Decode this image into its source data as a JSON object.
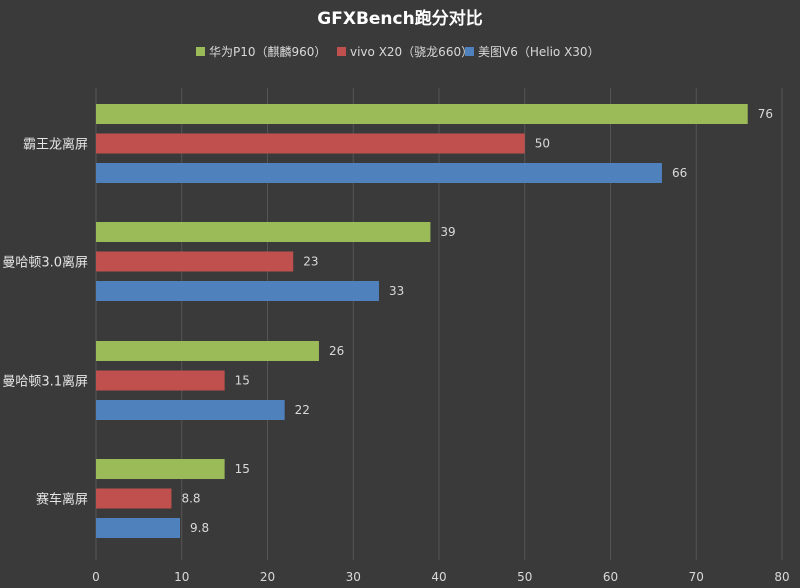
{
  "chart_data": {
    "type": "bar",
    "orientation": "horizontal",
    "title": "GFXBench跑分对比",
    "categories": [
      "霸王龙离屏",
      "曼哈顿3.0离屏",
      "曼哈顿3.1离屏",
      "赛车离屏"
    ],
    "series": [
      {
        "name": "华为P10（麒麟960）",
        "color": "#9bbb59",
        "values": [
          76,
          39,
          26,
          15
        ],
        "labels": [
          "76",
          "39",
          "26",
          "15"
        ]
      },
      {
        "name": "vivo X20（骁龙660）",
        "color": "#c0504d",
        "values": [
          50,
          23,
          15,
          8.8
        ],
        "labels": [
          "50",
          "23",
          "15",
          "8.8"
        ]
      },
      {
        "name": "美图V6（Helio X30）",
        "color": "#4f81bd",
        "values": [
          66,
          33,
          22,
          9.8
        ],
        "labels": [
          "66",
          "33",
          "22",
          "9.8"
        ]
      }
    ],
    "xlim": [
      0,
      80
    ],
    "xticks": [
      "0",
      "10",
      "20",
      "30",
      "40",
      "50",
      "60",
      "70",
      "80"
    ],
    "grid": true,
    "legend_position": "top"
  }
}
